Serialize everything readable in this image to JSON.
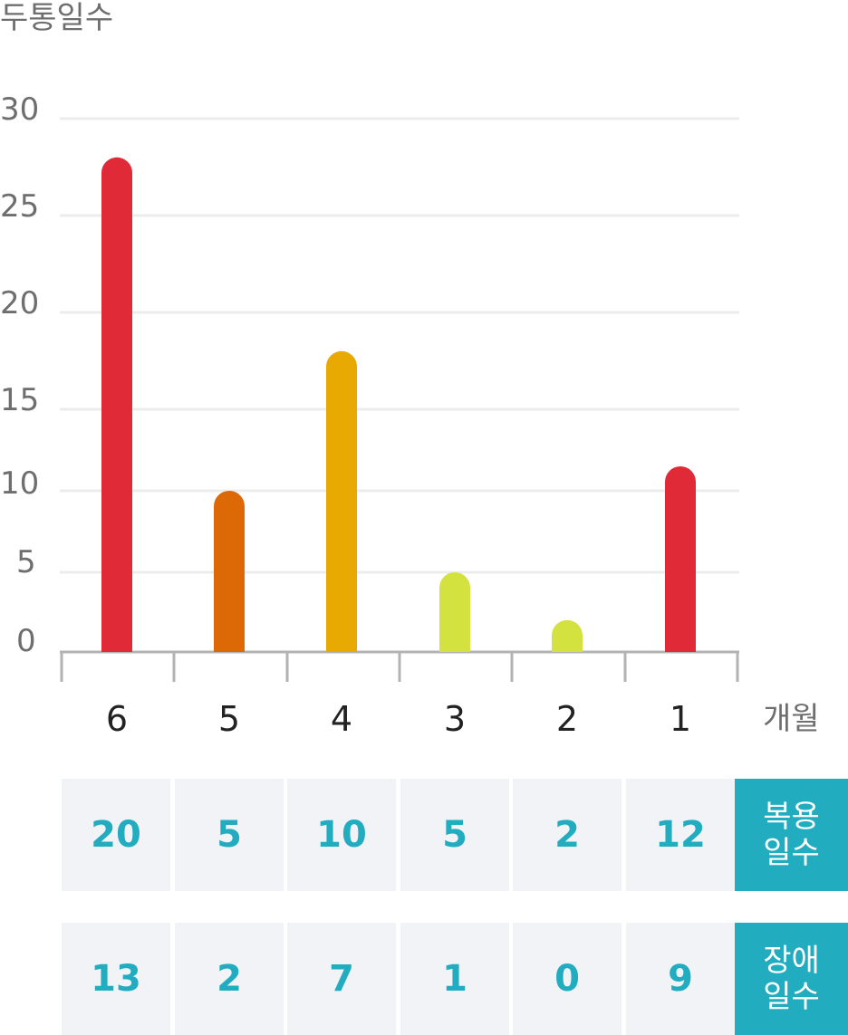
{
  "chart_data": {
    "type": "bar",
    "ylabel": "두통일수",
    "xlabel": "개월",
    "categories": [
      "6",
      "5",
      "4",
      "3",
      "2",
      "1"
    ],
    "values": [
      28,
      10,
      18,
      5,
      2,
      11.5
    ],
    "colors": [
      "#e02a38",
      "#dd6906",
      "#e8aa02",
      "#d3e23f",
      "#d3e23f",
      "#e02a38"
    ],
    "yticks": [
      "30",
      "25",
      "20",
      "15",
      "10",
      "5",
      "0"
    ],
    "ylim": [
      0,
      30
    ],
    "grid": true
  },
  "table": {
    "rows": [
      {
        "label_line1": "복용",
        "label_line2": "일수",
        "values": [
          "20",
          "5",
          "10",
          "5",
          "2",
          "12"
        ]
      },
      {
        "label_line1": "장애",
        "label_line2": "일수",
        "values": [
          "13",
          "2",
          "7",
          "1",
          "0",
          "9"
        ]
      }
    ]
  }
}
